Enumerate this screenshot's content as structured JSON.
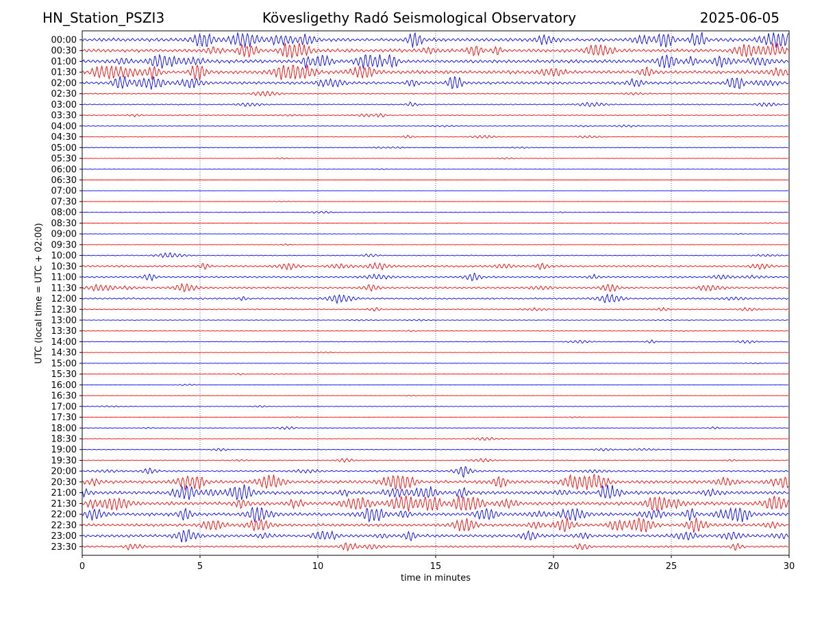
{
  "header": {
    "station": "HN_Station_PSZI3",
    "observatory": "Kövesligethy Radó Seismological Observatory",
    "date": "2025-06-05"
  },
  "chart_data": {
    "type": "line",
    "title": "Kövesligethy Radó Seismological Observatory",
    "xlabel": "time in minutes",
    "ylabel": "UTC (local time = UTC + 02:00)",
    "xlim": [
      0,
      30
    ],
    "x_ticks": [
      0,
      5,
      10,
      15,
      20,
      25,
      30
    ],
    "vertical_gridlines_at": [
      5,
      10,
      15,
      20,
      25
    ],
    "row_labels": [
      "00:00",
      "00:30",
      "01:00",
      "01:30",
      "02:00",
      "02:30",
      "03:00",
      "03:30",
      "04:00",
      "04:30",
      "05:00",
      "05:30",
      "06:00",
      "06:30",
      "07:00",
      "07:30",
      "08:00",
      "08:30",
      "09:00",
      "09:30",
      "10:00",
      "10:30",
      "11:00",
      "11:30",
      "12:00",
      "12:30",
      "13:00",
      "13:30",
      "14:00",
      "14:30",
      "15:00",
      "15:30",
      "16:00",
      "16:30",
      "17:00",
      "17:30",
      "18:00",
      "18:30",
      "19:00",
      "19:30",
      "20:00",
      "20:30",
      "21:00",
      "21:30",
      "22:00",
      "22:30",
      "23:00",
      "23:30"
    ],
    "trace_colors": [
      "#0000ff",
      "#ff0000"
    ],
    "activity_level": [
      1.0,
      0.95,
      1.0,
      1.0,
      0.8,
      0.3,
      0.3,
      0.25,
      0.2,
      0.2,
      0.2,
      0.12,
      0.1,
      0.05,
      0.05,
      0.05,
      0.15,
      0.1,
      0.1,
      0.1,
      0.25,
      0.5,
      0.45,
      0.5,
      0.45,
      0.3,
      0.2,
      0.15,
      0.2,
      0.08,
      0.1,
      0.12,
      0.1,
      0.08,
      0.15,
      0.12,
      0.18,
      0.15,
      0.2,
      0.25,
      0.45,
      0.9,
      1.0,
      1.0,
      0.95,
      0.85,
      0.85,
      0.5
    ]
  }
}
